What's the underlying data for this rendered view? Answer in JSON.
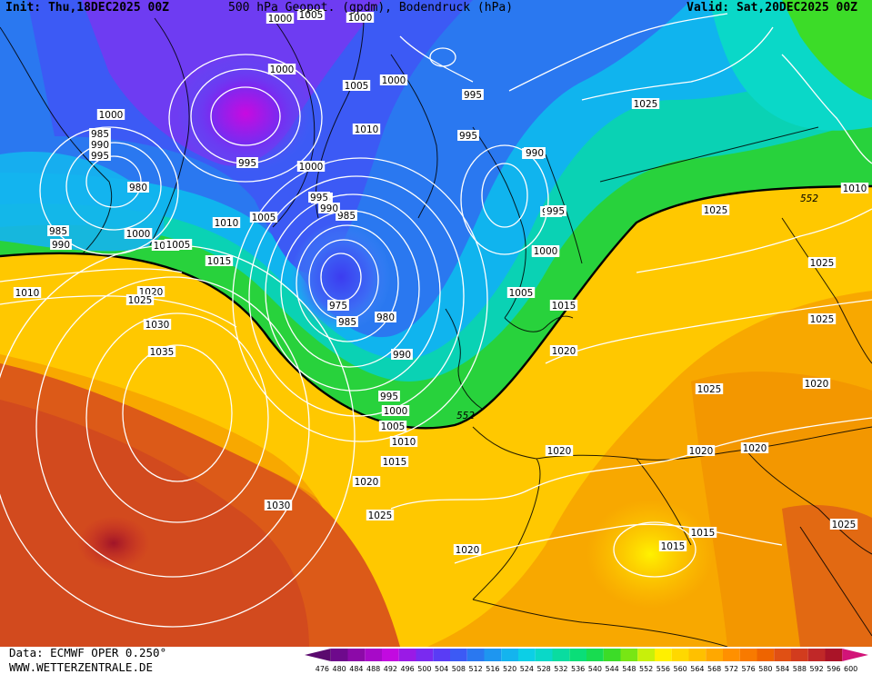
{
  "header": {
    "init": "Init: Thu,18DEC2025 00Z",
    "title": "500 hPa Geopot. (gpdm), Bodendruck (hPa)",
    "valid": "Valid: Sat,20DEC2025 00Z"
  },
  "footer": {
    "data": "Data: ECMWF OPER 0.250°",
    "site": "WWW.WETTERZENTRALE.DE"
  },
  "legend": {
    "ticks": [
      "476",
      "480",
      "484",
      "488",
      "492",
      "496",
      "500",
      "504",
      "508",
      "512",
      "516",
      "520",
      "524",
      "528",
      "532",
      "536",
      "540",
      "544",
      "548",
      "552",
      "556",
      "560",
      "564",
      "568",
      "572",
      "576",
      "580",
      "584",
      "588",
      "592",
      "596",
      "600"
    ],
    "colors": [
      "#5a0a6e",
      "#6e0a8c",
      "#8c0aa8",
      "#a70ac8",
      "#c20ae0",
      "#9a1ae6",
      "#7a2af0",
      "#5a3cf5",
      "#3c5af5",
      "#2a78f0",
      "#1e96f0",
      "#14b4ee",
      "#0ccfe6",
      "#0ad8c8",
      "#0adca0",
      "#0ade78",
      "#18dc50",
      "#3cdc28",
      "#78e614",
      "#c8f00a",
      "#fff000",
      "#ffd800",
      "#ffc000",
      "#ffa800",
      "#ff9000",
      "#f87a00",
      "#ee6400",
      "#e05014",
      "#d23c1e",
      "#c02828",
      "#aa1428",
      "#d21478"
    ]
  },
  "map": {
    "geopotential_contour_labels": [
      "552",
      "552",
      "552"
    ],
    "pressure_labels": [
      "1000",
      "1000",
      "1005",
      "1000",
      "1005",
      "1000",
      "995",
      "1010",
      "995",
      "990",
      "985",
      "1000",
      "980",
      "985",
      "990",
      "995",
      "1000",
      "1005",
      "1010",
      "1015",
      "1020",
      "1025",
      "1030",
      "1035",
      "1030",
      "1025",
      "1020",
      "1015",
      "1010",
      "1005",
      "1000",
      "995",
      "990",
      "985",
      "980",
      "975",
      "985",
      "990",
      "995",
      "1005",
      "1010",
      "995",
      "1000",
      "985",
      "1010",
      "1005",
      "990",
      "1000",
      "1025",
      "1025",
      "1000",
      "995",
      "990",
      "995",
      "1000",
      "1005",
      "1015",
      "1025",
      "1025",
      "1025",
      "1020",
      "1025",
      "1020",
      "1020",
      "1020",
      "1020",
      "1015",
      "1015",
      "1020",
      "1025",
      "1025",
      "1010"
    ]
  }
}
